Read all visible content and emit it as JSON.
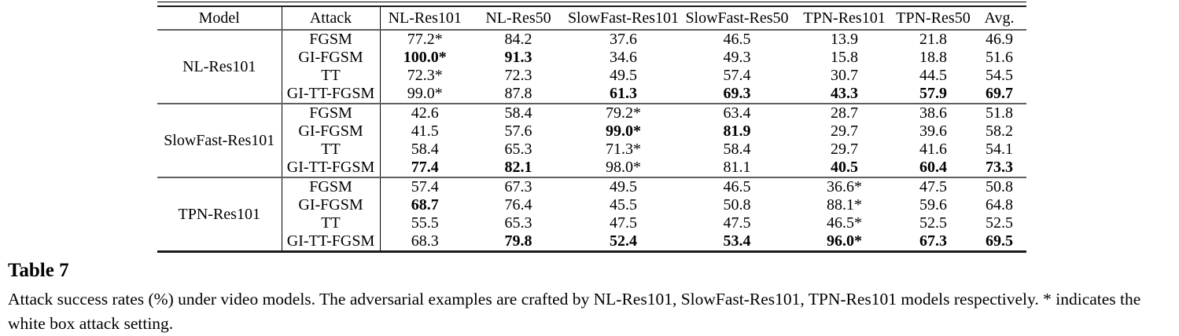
{
  "table": {
    "headers": [
      "Model",
      "Attack",
      "NL-Res101",
      "NL-Res50",
      "SlowFast-Res101",
      "SlowFast-Res50",
      "TPN-Res101",
      "TPN-Res50",
      "Avg."
    ],
    "groups": [
      {
        "model": "NL-Res101",
        "rows": [
          {
            "attack": "FGSM",
            "values": [
              "77.2*",
              "84.2",
              "37.6",
              "46.5",
              "13.9",
              "21.8",
              "46.9"
            ],
            "bold": []
          },
          {
            "attack": "GI-FGSM",
            "values": [
              "100.0*",
              "91.3",
              "34.6",
              "49.3",
              "15.8",
              "18.8",
              "51.6"
            ],
            "bold": [
              0,
              1
            ]
          },
          {
            "attack": "TT",
            "values": [
              "72.3*",
              "72.3",
              "49.5",
              "57.4",
              "30.7",
              "44.5",
              "54.5"
            ],
            "bold": []
          },
          {
            "attack": "GI-TT-FGSM",
            "values": [
              "99.0*",
              "87.8",
              "61.3",
              "69.3",
              "43.3",
              "57.9",
              "69.7"
            ],
            "bold": [
              2,
              3,
              4,
              5,
              6
            ]
          }
        ]
      },
      {
        "model": "SlowFast-Res101",
        "rows": [
          {
            "attack": "FGSM",
            "values": [
              "42.6",
              "58.4",
              "79.2*",
              "63.4",
              "28.7",
              "38.6",
              "51.8"
            ],
            "bold": []
          },
          {
            "attack": "GI-FGSM",
            "values": [
              "41.5",
              "57.6",
              "99.0*",
              "81.9",
              "29.7",
              "39.6",
              "58.2"
            ],
            "bold": [
              2,
              3
            ]
          },
          {
            "attack": "TT",
            "values": [
              "58.4",
              "65.3",
              "71.3*",
              "58.4",
              "29.7",
              "41.6",
              "54.1"
            ],
            "bold": []
          },
          {
            "attack": "GI-TT-FGSM",
            "values": [
              "77.4",
              "82.1",
              "98.0*",
              "81.1",
              "40.5",
              "60.4",
              "73.3"
            ],
            "bold": [
              0,
              1,
              4,
              5,
              6
            ]
          }
        ]
      },
      {
        "model": "TPN-Res101",
        "rows": [
          {
            "attack": "FGSM",
            "values": [
              "57.4",
              "67.3",
              "49.5",
              "46.5",
              "36.6*",
              "47.5",
              "50.8"
            ],
            "bold": []
          },
          {
            "attack": "GI-FGSM",
            "values": [
              "68.7",
              "76.4",
              "45.5",
              "50.8",
              "88.1*",
              "59.6",
              "64.8"
            ],
            "bold": [
              0
            ]
          },
          {
            "attack": "TT",
            "values": [
              "55.5",
              "65.3",
              "47.5",
              "47.5",
              "46.5*",
              "52.5",
              "52.5"
            ],
            "bold": []
          },
          {
            "attack": "GI-TT-FGSM",
            "values": [
              "68.3",
              "79.8",
              "52.4",
              "53.4",
              "96.0*",
              "67.3",
              "69.5"
            ],
            "bold": [
              1,
              2,
              3,
              4,
              5,
              6
            ]
          }
        ]
      }
    ]
  },
  "caption": {
    "label": "Table 7",
    "text": "Attack success rates (%) under video models. The adversarial examples are crafted by NL-Res101, SlowFast-Res101, TPN-Res101 models respectively. * indicates the white box attack setting."
  }
}
